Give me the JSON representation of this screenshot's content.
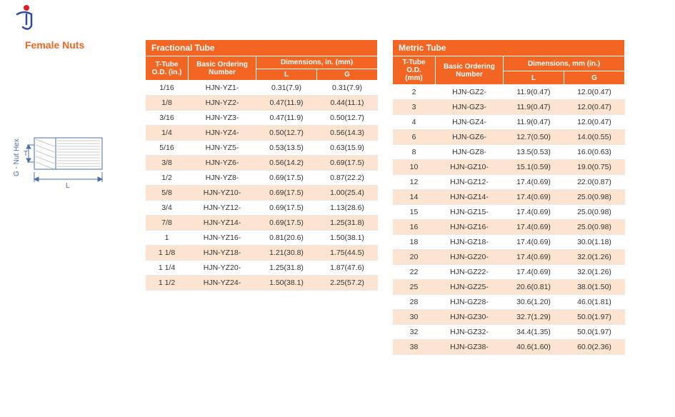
{
  "page_title": "Female Nuts",
  "logo": {
    "dot_color": "#e31b23",
    "stroke_color": "#2e4a9e"
  },
  "diagram": {
    "label_left": "G - Nut Hex",
    "label_t": "T",
    "label_l": "L",
    "line_color": "#4a6ea8",
    "hatch_color": "#b9b9b9"
  },
  "colors": {
    "header_bg": "#f26522",
    "header_fg": "#ffffff",
    "row_alt_bg": "#fde4d0",
    "row_bg": "#ffffff",
    "text": "#333333"
  },
  "fractional": {
    "caption": "Fractional Tube",
    "header_tod": "T-Tube O.D. (in.)",
    "header_ord": "Basic Ordering Number",
    "header_dim": "Dimensions, in. (mm)",
    "header_L": "L",
    "header_G": "G",
    "rows": [
      {
        "t": "1/16",
        "ord": "HJN-YZ1-",
        "l": "0.31(7.9)",
        "g": "0.31(7.9)"
      },
      {
        "t": "1/8",
        "ord": "HJN-YZ2-",
        "l": "0.47(11.9)",
        "g": "0.44(11.1)"
      },
      {
        "t": "3/16",
        "ord": "HJN-YZ3-",
        "l": "0.47(11.9)",
        "g": "0.50(12.7)"
      },
      {
        "t": "1/4",
        "ord": "HJN-YZ4-",
        "l": "0.50(12.7)",
        "g": "0.56(14.3)"
      },
      {
        "t": "5/16",
        "ord": "HJN-YZ5-",
        "l": "0.53(13.5)",
        "g": "0.63(15.9)"
      },
      {
        "t": "3/8",
        "ord": "HJN-YZ6-",
        "l": "0.56(14.2)",
        "g": "0.69(17.5)"
      },
      {
        "t": "1/2",
        "ord": "HJN-YZ8-",
        "l": "0.69(17.5)",
        "g": "0.87(22.2)"
      },
      {
        "t": "5/8",
        "ord": "HJN-YZ10-",
        "l": "0.69(17.5)",
        "g": "1.00(25.4)"
      },
      {
        "t": "3/4",
        "ord": "HJN-YZ12-",
        "l": "0.69(17.5)",
        "g": "1.13(28.6)"
      },
      {
        "t": "7/8",
        "ord": "HJN-YZ14-",
        "l": "0.69(17.5)",
        "g": "1.25(31.8)"
      },
      {
        "t": "1",
        "ord": "HJN-YZ16-",
        "l": "0.81(20.6)",
        "g": "1.50(38.1)"
      },
      {
        "t": "1   1/8",
        "ord": "HJN-YZ18-",
        "l": "1.21(30.8)",
        "g": "1.75(44.5)"
      },
      {
        "t": "1   1/4",
        "ord": "HJN-YZ20-",
        "l": "1.25(31.8)",
        "g": "1.87(47.6)"
      },
      {
        "t": "1   1/2",
        "ord": "HJN-YZ24-",
        "l": "1.50(38.1)",
        "g": "2.25(57.2)"
      }
    ]
  },
  "metric": {
    "caption": "Metric Tube",
    "header_tod": "T-Tube O.D. (mm)",
    "header_ord": "Basic Ordering Number",
    "header_dim": "Dimensions, mm (in.)",
    "header_L": "L",
    "header_G": "G",
    "rows": [
      {
        "t": "2",
        "ord": "HJN-GZ2-",
        "l": "11.9(0.47)",
        "g": "12.0(0.47)"
      },
      {
        "t": "3",
        "ord": "HJN-GZ3-",
        "l": "11.9(0.47)",
        "g": "12.0(0.47)"
      },
      {
        "t": "4",
        "ord": "HJN-GZ4-",
        "l": "11.9(0.47)",
        "g": "12.0(0.47)"
      },
      {
        "t": "6",
        "ord": "HJN-GZ6-",
        "l": "12.7(0.50)",
        "g": "14.0(0.55)"
      },
      {
        "t": "8",
        "ord": "HJN-GZ8-",
        "l": "13.5(0.53)",
        "g": "16.0(0.63)"
      },
      {
        "t": "10",
        "ord": "HJN-GZ10-",
        "l": "15.1(0.59)",
        "g": "19.0(0.75)"
      },
      {
        "t": "12",
        "ord": "HJN-GZ12-",
        "l": "17.4(0.69)",
        "g": "22.0(0.87)"
      },
      {
        "t": "14",
        "ord": "HJN-GZ14-",
        "l": "17.4(0.69)",
        "g": "25.0(0.98)"
      },
      {
        "t": "15",
        "ord": "HJN-GZ15-",
        "l": "17.4(0.69)",
        "g": "25.0(0.98)"
      },
      {
        "t": "16",
        "ord": "HJN-GZ16-",
        "l": "17.4(0.69)",
        "g": "25.0(0.98)"
      },
      {
        "t": "18",
        "ord": "HJN-GZ18-",
        "l": "17.4(0.69)",
        "g": "30.0(1.18)"
      },
      {
        "t": "20",
        "ord": "HJN-GZ20-",
        "l": "17.4(0.69)",
        "g": "32.0(1.26)"
      },
      {
        "t": "22",
        "ord": "HJN-GZ22-",
        "l": "17.4(0.69)",
        "g": "32.0(1.26)"
      },
      {
        "t": "25",
        "ord": "HJN-GZ25-",
        "l": "20.6(0.81)",
        "g": "38.0(1.50)"
      },
      {
        "t": "28",
        "ord": "HJN-GZ28-",
        "l": "30.6(1.20)",
        "g": "46.0(1.81)"
      },
      {
        "t": "30",
        "ord": "HJN-GZ30-",
        "l": "32.7(1.29)",
        "g": "50.0(1.97)"
      },
      {
        "t": "32",
        "ord": "HJN-GZ32-",
        "l": "34.4(1.35)",
        "g": "50.0(1.97)"
      },
      {
        "t": "38",
        "ord": "HJN-GZ38-",
        "l": "40.6(1.60)",
        "g": "60.0(2.36)"
      }
    ]
  }
}
